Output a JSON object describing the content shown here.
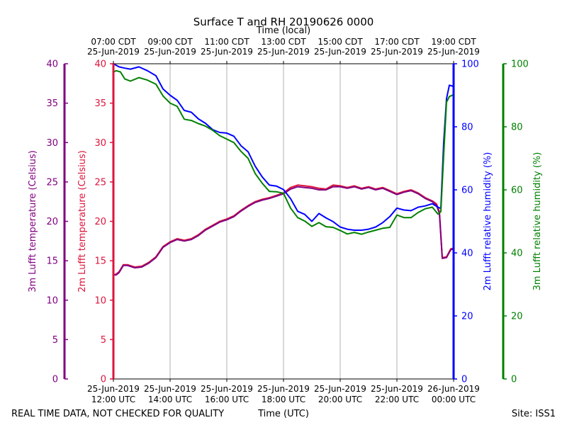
{
  "chart_data": {
    "type": "line",
    "title": "Surface T and RH 20190626 0000",
    "top_axis_label": "Time (local)",
    "xlabel": "Time (UTC)",
    "footer_left": "REAL TIME DATA, NOT CHECKED FOR QUALITY",
    "footer_right": "Site: ISS1",
    "xlim_hours_utc": [
      12,
      24
    ],
    "bottom_ticks": [
      {
        "h": 12,
        "l1": "25-Jun-2019",
        "l2": "12:00 UTC"
      },
      {
        "h": 14,
        "l1": "25-Jun-2019",
        "l2": "14:00 UTC"
      },
      {
        "h": 16,
        "l1": "25-Jun-2019",
        "l2": "16:00 UTC"
      },
      {
        "h": 18,
        "l1": "25-Jun-2019",
        "l2": "18:00 UTC"
      },
      {
        "h": 20,
        "l1": "25-Jun-2019",
        "l2": "20:00 UTC"
      },
      {
        "h": 22,
        "l1": "25-Jun-2019",
        "l2": "22:00 UTC"
      },
      {
        "h": 24,
        "l1": "26-Jun-2019",
        "l2": "00:00 UTC"
      }
    ],
    "top_ticks": [
      {
        "h": 12,
        "l1": "07:00 CDT",
        "l2": "25-Jun-2019"
      },
      {
        "h": 14,
        "l1": "09:00 CDT",
        "l2": "25-Jun-2019"
      },
      {
        "h": 16,
        "l1": "11:00 CDT",
        "l2": "25-Jun-2019"
      },
      {
        "h": 18,
        "l1": "13:00 CDT",
        "l2": "25-Jun-2019"
      },
      {
        "h": 20,
        "l1": "15:00 CDT",
        "l2": "25-Jun-2019"
      },
      {
        "h": 22,
        "l1": "17:00 CDT",
        "l2": "25-Jun-2019"
      },
      {
        "h": 24,
        "l1": "19:00 CDT",
        "l2": "25-Jun-2019"
      }
    ],
    "axes": {
      "t3m": {
        "label": "3m Lufft temperature (Celsius)",
        "color": "#800080",
        "ylim": [
          0,
          40
        ],
        "ticks": [
          0,
          5,
          10,
          15,
          20,
          25,
          30,
          35,
          40
        ]
      },
      "t2m": {
        "label": "2m Lufft temperature (Celsius)",
        "color": "#dc143c",
        "ylim": [
          0,
          40
        ],
        "ticks": [
          0,
          5,
          10,
          15,
          20,
          25,
          30,
          35,
          40
        ]
      },
      "rh2m": {
        "label": "2m Lufft relative humidity (%)",
        "color": "#0000ff",
        "ylim": [
          0,
          100
        ],
        "ticks": [
          0,
          20,
          40,
          60,
          80,
          100
        ]
      },
      "rh3m": {
        "label": "3m Lufft relative humidity (%)",
        "color": "#008000",
        "ylim": [
          0,
          100
        ],
        "ticks": [
          0,
          20,
          40,
          60,
          80,
          100
        ]
      }
    },
    "series": [
      {
        "name": "2m temperature",
        "axis": "t2m",
        "color": "#dc143c",
        "x": [
          12.0,
          12.1,
          12.2,
          12.35,
          12.5,
          12.75,
          13.0,
          13.25,
          13.5,
          13.75,
          14.0,
          14.25,
          14.5,
          14.75,
          15.0,
          15.25,
          15.5,
          15.75,
          16.0,
          16.25,
          16.5,
          16.75,
          17.0,
          17.25,
          17.5,
          17.75,
          18.0,
          18.25,
          18.5,
          18.75,
          19.0,
          19.25,
          19.5,
          19.75,
          20.0,
          20.25,
          20.5,
          20.75,
          21.0,
          21.25,
          21.5,
          21.75,
          22.0,
          22.25,
          22.5,
          22.75,
          23.0,
          23.25,
          23.4,
          23.5,
          23.6,
          23.75,
          23.9,
          24.0
        ],
        "values": [
          13.2,
          13.3,
          13.6,
          14.5,
          14.5,
          14.2,
          14.3,
          14.8,
          15.5,
          16.8,
          17.4,
          17.8,
          17.6,
          17.8,
          18.3,
          19.0,
          19.5,
          20.0,
          20.3,
          20.7,
          21.4,
          22.0,
          22.5,
          22.8,
          23.0,
          23.3,
          23.6,
          24.3,
          24.6,
          24.5,
          24.4,
          24.2,
          24.1,
          24.6,
          24.5,
          24.3,
          24.5,
          24.2,
          24.4,
          24.1,
          24.3,
          23.9,
          23.5,
          23.8,
          24.0,
          23.6,
          23.0,
          22.6,
          22.2,
          21.2,
          15.4,
          15.5,
          16.5,
          16.6
        ]
      },
      {
        "name": "3m temperature",
        "axis": "t3m",
        "color": "#800080",
        "x": [
          12.0,
          12.1,
          12.2,
          12.35,
          12.5,
          12.75,
          13.0,
          13.25,
          13.5,
          13.75,
          14.0,
          14.25,
          14.5,
          14.75,
          15.0,
          15.25,
          15.5,
          15.75,
          16.0,
          16.25,
          16.5,
          16.75,
          17.0,
          17.25,
          17.5,
          17.75,
          18.0,
          18.25,
          18.5,
          18.75,
          19.0,
          19.25,
          19.5,
          19.75,
          20.0,
          20.25,
          20.5,
          20.75,
          21.0,
          21.25,
          21.5,
          21.75,
          22.0,
          22.25,
          22.5,
          22.75,
          23.0,
          23.25,
          23.4,
          23.5,
          23.6,
          23.75,
          23.9,
          24.0
        ],
        "values": [
          13.2,
          13.2,
          13.5,
          14.4,
          14.4,
          14.1,
          14.2,
          14.7,
          15.4,
          16.7,
          17.3,
          17.7,
          17.5,
          17.7,
          18.2,
          18.9,
          19.4,
          19.9,
          20.2,
          20.6,
          21.3,
          21.9,
          22.4,
          22.7,
          22.9,
          23.2,
          23.5,
          24.1,
          24.4,
          24.3,
          24.2,
          24.0,
          24.0,
          24.4,
          24.4,
          24.2,
          24.4,
          24.1,
          24.3,
          24.0,
          24.2,
          23.8,
          23.4,
          23.7,
          23.9,
          23.5,
          22.9,
          22.5,
          22.0,
          21.0,
          15.3,
          15.4,
          16.4,
          16.5
        ]
      },
      {
        "name": "2m relative humidity",
        "axis": "rh2m",
        "color": "#0000ff",
        "x": [
          12.0,
          12.2,
          12.4,
          12.6,
          12.9,
          13.2,
          13.5,
          13.75,
          14.0,
          14.25,
          14.5,
          14.75,
          15.0,
          15.25,
          15.5,
          15.75,
          16.0,
          16.25,
          16.5,
          16.75,
          17.0,
          17.25,
          17.5,
          17.75,
          18.0,
          18.25,
          18.5,
          18.75,
          19.0,
          19.25,
          19.5,
          19.75,
          20.0,
          20.25,
          20.5,
          20.75,
          21.0,
          21.25,
          21.5,
          21.75,
          22.0,
          22.25,
          22.5,
          22.75,
          23.0,
          23.25,
          23.45,
          23.55,
          23.65,
          23.75,
          23.85,
          24.0
        ],
        "values": [
          100,
          99.0,
          98.6,
          98.3,
          99.0,
          97.8,
          96.2,
          92.0,
          90.0,
          88.4,
          85.2,
          84.6,
          82.5,
          81.1,
          79.1,
          78.2,
          78.0,
          77.0,
          74.0,
          72.1,
          67.5,
          64.1,
          61.5,
          61.2,
          60.1,
          57.2,
          53.2,
          52.2,
          50.0,
          52.5,
          51.1,
          49.9,
          48.2,
          47.5,
          47.2,
          47.2,
          47.5,
          48.2,
          49.6,
          51.5,
          54.2,
          53.6,
          53.4,
          54.5,
          54.9,
          55.6,
          54.5,
          54.1,
          75.0,
          88.9,
          93.2,
          92.8
        ]
      },
      {
        "name": "3m relative humidity",
        "axis": "rh3m",
        "color": "#008000",
        "x": [
          12.0,
          12.1,
          12.25,
          12.4,
          12.6,
          12.9,
          13.2,
          13.5,
          13.75,
          14.0,
          14.25,
          14.5,
          14.75,
          15.0,
          15.25,
          15.5,
          15.75,
          16.0,
          16.25,
          16.5,
          16.75,
          17.0,
          17.25,
          17.5,
          17.75,
          18.0,
          18.25,
          18.5,
          18.75,
          19.0,
          19.25,
          19.5,
          19.75,
          20.0,
          20.25,
          20.5,
          20.75,
          21.0,
          21.25,
          21.5,
          21.75,
          22.0,
          22.25,
          22.5,
          22.75,
          23.0,
          23.25,
          23.45,
          23.55,
          23.65,
          23.75,
          23.85,
          24.0
        ],
        "values": [
          97.4,
          97.8,
          97.4,
          95.2,
          94.5,
          95.6,
          94.8,
          93.5,
          89.8,
          87.5,
          86.5,
          82.4,
          82.0,
          81.0,
          80.2,
          78.9,
          77.2,
          76.1,
          75.0,
          72.2,
          70.0,
          65.2,
          62.1,
          59.5,
          59.4,
          58.9,
          54.2,
          51.2,
          50.1,
          48.4,
          49.6,
          48.3,
          48.1,
          47.1,
          46.0,
          46.5,
          45.9,
          46.6,
          47.2,
          47.8,
          48.1,
          52.0,
          51.2,
          51.2,
          52.8,
          54.0,
          54.5,
          52.3,
          53.1,
          71.0,
          87.8,
          89.6,
          90.2
        ]
      }
    ]
  }
}
